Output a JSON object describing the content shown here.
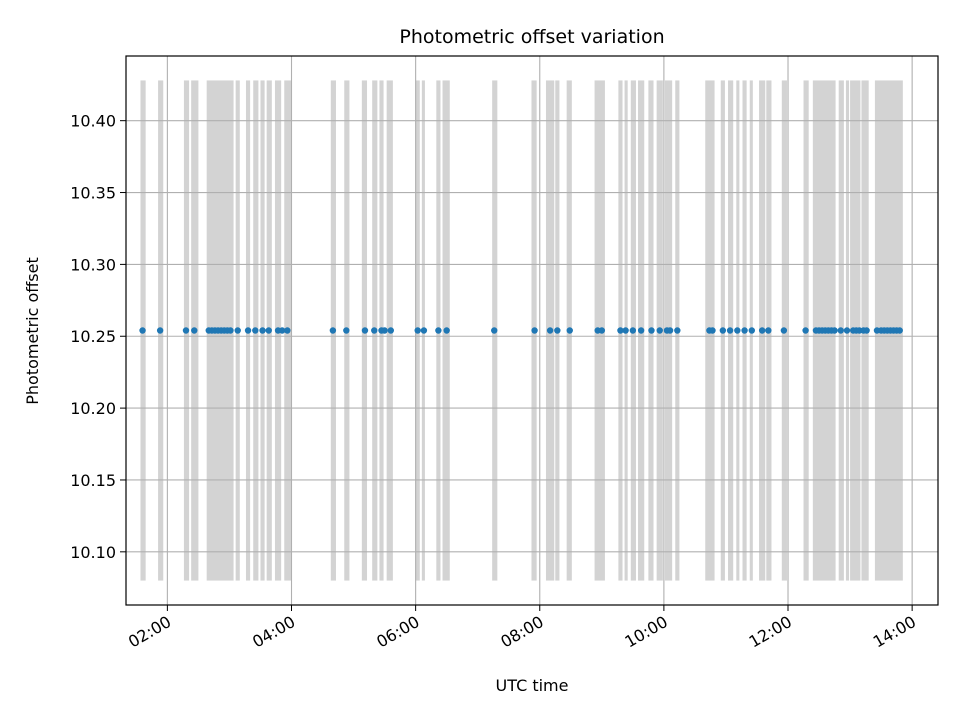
{
  "chart_data": {
    "type": "scatter",
    "title": "Photometric offset variation",
    "xlabel": "UTC time",
    "ylabel": "Photometric offset",
    "x_is_time": true,
    "xlim": [
      "01:20",
      "14:25"
    ],
    "ylim": [
      10.063,
      10.445
    ],
    "xticks": [
      "02:00",
      "04:00",
      "06:00",
      "08:00",
      "10:00",
      "12:00",
      "14:00"
    ],
    "yticks": [
      "10.10",
      "10.15",
      "10.20",
      "10.25",
      "10.30",
      "10.35",
      "10.40"
    ],
    "grid": true,
    "colors": {
      "points": "#1f77b4",
      "bands": "#d3d3d3",
      "grid": "#b0b0b0"
    },
    "bands": {
      "y_range": [
        10.08,
        10.428
      ],
      "intervals": [
        [
          "01:34",
          "01:39"
        ],
        [
          "01:51",
          "01:56"
        ],
        [
          "02:16",
          "02:21"
        ],
        [
          "02:23",
          "02:30"
        ],
        [
          "02:38",
          "03:04"
        ],
        [
          "03:06",
          "03:10"
        ],
        [
          "03:16",
          "03:20"
        ],
        [
          "03:23",
          "03:28"
        ],
        [
          "03:30",
          "03:34"
        ],
        [
          "03:36",
          "03:41"
        ],
        [
          "03:44",
          "03:50"
        ],
        [
          "03:53",
          "04:00"
        ],
        [
          "04:38",
          "04:43"
        ],
        [
          "04:51",
          "04:56"
        ],
        [
          "05:08",
          "05:13"
        ],
        [
          "05:18",
          "05:23"
        ],
        [
          "05:25",
          "05:29"
        ],
        [
          "05:32",
          "05:38"
        ],
        [
          "06:00",
          "06:04"
        ],
        [
          "06:06",
          "06:09"
        ],
        [
          "06:20",
          "06:24"
        ],
        [
          "06:26",
          "06:33"
        ],
        [
          "07:14",
          "07:19"
        ],
        [
          "07:52",
          "07:57"
        ],
        [
          "08:06",
          "08:14"
        ],
        [
          "08:15",
          "08:19"
        ],
        [
          "08:26",
          "08:31"
        ],
        [
          "08:53",
          "09:03"
        ],
        [
          "09:16",
          "09:20"
        ],
        [
          "09:22",
          "09:25"
        ],
        [
          "09:28",
          "09:33"
        ],
        [
          "09:35",
          "09:41"
        ],
        [
          "09:45",
          "09:50"
        ],
        [
          "09:53",
          "09:59"
        ],
        [
          "10:01",
          "10:08"
        ],
        [
          "10:11",
          "10:15"
        ],
        [
          "10:40",
          "10:49"
        ],
        [
          "10:55",
          "10:59"
        ],
        [
          "11:02",
          "11:07"
        ],
        [
          "11:10",
          "11:13"
        ],
        [
          "11:16",
          "11:20"
        ],
        [
          "11:23",
          "11:26"
        ],
        [
          "11:32",
          "11:38"
        ],
        [
          "11:39",
          "11:44"
        ],
        [
          "11:54",
          "11:59"
        ],
        [
          "12:15",
          "12:20"
        ],
        [
          "12:24",
          "12:46"
        ],
        [
          "12:49",
          "12:54"
        ],
        [
          "12:56",
          "12:59"
        ],
        [
          "13:00",
          "13:10"
        ],
        [
          "13:11",
          "13:18"
        ],
        [
          "13:24",
          "13:51"
        ]
      ]
    },
    "series": [
      {
        "y": 10.254,
        "x": [
          "01:36",
          "01:53",
          "02:18",
          "02:26",
          "02:40",
          "02:43",
          "02:46",
          "02:49",
          "02:52",
          "02:55",
          "02:58",
          "03:01",
          "03:08",
          "03:18",
          "03:25",
          "03:32",
          "03:38",
          "03:47",
          "03:51",
          "03:56",
          "04:40",
          "04:53",
          "05:11",
          "05:20",
          "05:27",
          "05:30",
          "05:36",
          "06:02",
          "06:08",
          "06:22",
          "06:30",
          "07:16",
          "07:55",
          "08:10",
          "08:17",
          "08:29",
          "08:56",
          "09:00",
          "09:18",
          "09:23",
          "09:30",
          "09:38",
          "09:48",
          "09:56",
          "10:03",
          "10:06",
          "10:13",
          "10:44",
          "10:47",
          "10:57",
          "11:04",
          "11:11",
          "11:18",
          "11:25",
          "11:35",
          "11:41",
          "11:56",
          "12:17",
          "12:27",
          "12:30",
          "12:33",
          "12:36",
          "12:39",
          "12:42",
          "12:45",
          "12:51",
          "12:57",
          "13:03",
          "13:06",
          "13:09",
          "13:13",
          "13:16",
          "13:26",
          "13:30",
          "13:33",
          "13:36",
          "13:39",
          "13:42",
          "13:45",
          "13:48"
        ]
      }
    ]
  }
}
